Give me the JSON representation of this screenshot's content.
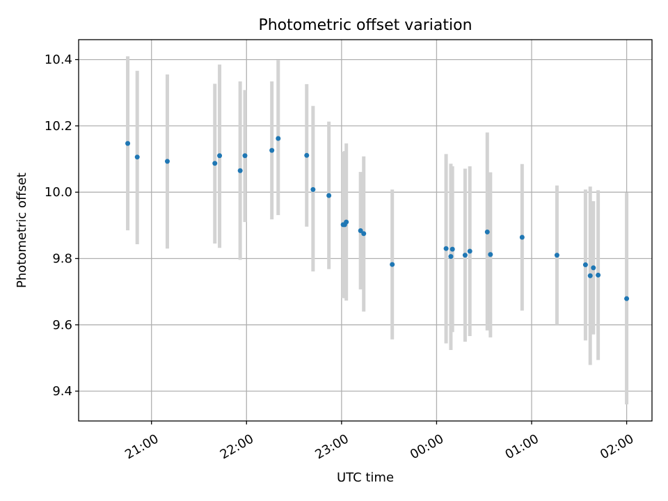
{
  "chart_data": {
    "type": "scatter",
    "title": "Photometric offset variation",
    "xlabel": "UTC time",
    "ylabel": "Photometric offset",
    "x_ticks": [
      "21:00",
      "22:00",
      "23:00",
      "00:00",
      "01:00",
      "02:00"
    ],
    "y_ticks": [
      "9.4",
      "9.6",
      "9.8",
      "10.0",
      "10.2",
      "10.4"
    ],
    "xlim": [
      "20:14",
      "02:16"
    ],
    "ylim": [
      9.31,
      10.46
    ],
    "grid": true,
    "colors": {
      "point": "#1f77b4",
      "errorbar": "#d3d3d3"
    },
    "points": [
      {
        "x": "20:45",
        "y": 10.147,
        "lo": 9.885,
        "hi": 10.41
      },
      {
        "x": "20:51",
        "y": 10.106,
        "lo": 9.843,
        "hi": 10.366
      },
      {
        "x": "21:10",
        "y": 10.093,
        "lo": 9.83,
        "hi": 10.355
      },
      {
        "x": "21:40",
        "y": 10.087,
        "lo": 9.845,
        "hi": 10.327
      },
      {
        "x": "21:43",
        "y": 10.11,
        "lo": 9.832,
        "hi": 10.385
      },
      {
        "x": "21:56",
        "y": 10.065,
        "lo": 9.796,
        "hi": 10.334
      },
      {
        "x": "21:59",
        "y": 10.11,
        "lo": 9.91,
        "hi": 10.308
      },
      {
        "x": "22:16",
        "y": 10.126,
        "lo": 9.918,
        "hi": 10.334
      },
      {
        "x": "22:20",
        "y": 10.162,
        "lo": 9.931,
        "hi": 10.399
      },
      {
        "x": "22:38",
        "y": 10.111,
        "lo": 9.896,
        "hi": 10.326
      },
      {
        "x": "22:42",
        "y": 10.008,
        "lo": 9.761,
        "hi": 10.26
      },
      {
        "x": "22:52",
        "y": 9.99,
        "lo": 9.768,
        "hi": 10.213
      },
      {
        "x": "23:01",
        "y": 9.902,
        "lo": 9.681,
        "hi": 10.122
      },
      {
        "x": "23:02",
        "y": 9.902,
        "lo": 9.68,
        "hi": 10.124
      },
      {
        "x": "23:03",
        "y": 9.91,
        "lo": 9.673,
        "hi": 10.147
      },
      {
        "x": "23:12",
        "y": 9.884,
        "lo": 9.707,
        "hi": 10.061
      },
      {
        "x": "23:14",
        "y": 9.875,
        "lo": 9.64,
        "hi": 10.108
      },
      {
        "x": "23:32",
        "y": 9.782,
        "lo": 9.556,
        "hi": 10.008
      },
      {
        "x": "00:06",
        "y": 9.83,
        "lo": 9.544,
        "hi": 10.115
      },
      {
        "x": "00:09",
        "y": 9.806,
        "lo": 9.524,
        "hi": 10.086
      },
      {
        "x": "00:10",
        "y": 9.828,
        "lo": 9.578,
        "hi": 10.078
      },
      {
        "x": "00:18",
        "y": 9.81,
        "lo": 9.549,
        "hi": 10.071
      },
      {
        "x": "00:21",
        "y": 9.822,
        "lo": 9.566,
        "hi": 10.078
      },
      {
        "x": "00:32",
        "y": 9.88,
        "lo": 9.583,
        "hi": 10.18
      },
      {
        "x": "00:34",
        "y": 9.812,
        "lo": 9.562,
        "hi": 10.06
      },
      {
        "x": "00:54",
        "y": 9.864,
        "lo": 9.643,
        "hi": 10.085
      },
      {
        "x": "01:16",
        "y": 9.81,
        "lo": 9.6,
        "hi": 10.02
      },
      {
        "x": "01:34",
        "y": 9.781,
        "lo": 9.553,
        "hi": 10.008
      },
      {
        "x": "01:37",
        "y": 9.748,
        "lo": 9.479,
        "hi": 10.017
      },
      {
        "x": "01:39",
        "y": 9.772,
        "lo": 9.571,
        "hi": 9.973
      },
      {
        "x": "01:42",
        "y": 9.75,
        "lo": 9.494,
        "hi": 10.006
      },
      {
        "x": "02:00",
        "y": 9.679,
        "lo": 9.36,
        "hi": 9.998
      }
    ]
  }
}
